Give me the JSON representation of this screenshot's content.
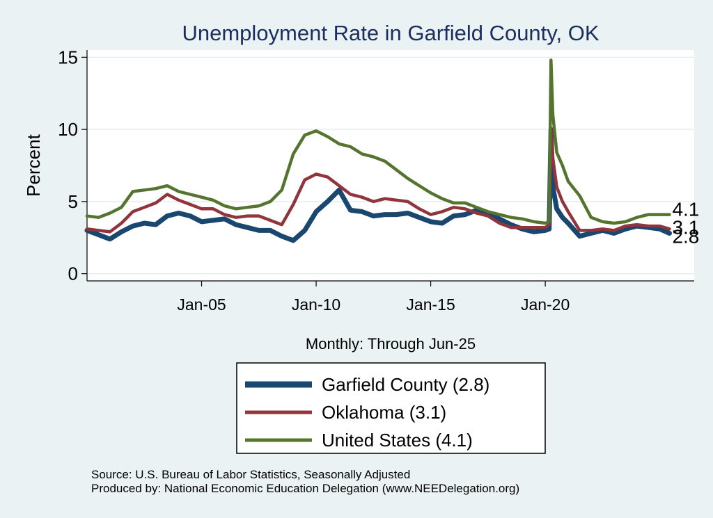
{
  "chart_data": {
    "type": "line",
    "title": "Unemployment Rate in Garfield  County, OK",
    "xlabel": "Monthly: Through Jun-25",
    "ylabel": "Percent",
    "ylim": [
      -0.5,
      15.5
    ],
    "xlim": [
      2000.0,
      2026.5
    ],
    "yticks": [
      {
        "value": 0,
        "label": "0"
      },
      {
        "value": 5,
        "label": "5"
      },
      {
        "value": 10,
        "label": "10"
      },
      {
        "value": 15,
        "label": "15"
      }
    ],
    "xticks": [
      {
        "value": 2005,
        "label": "Jan-05"
      },
      {
        "value": 2010,
        "label": "Jan-10"
      },
      {
        "value": 2015,
        "label": "Jan-15"
      },
      {
        "value": 2020,
        "label": "Jan-20"
      }
    ],
    "grid": true,
    "legend_position": "bottom",
    "series": [
      {
        "name": "Garfield  County",
        "legend_label": "Garfield  County (2.8)",
        "end_label": "2.8",
        "color": "#1a476f",
        "x": [
          2000.0,
          2000.5,
          2001.0,
          2001.5,
          2002.0,
          2002.5,
          2003.0,
          2003.5,
          2004.0,
          2004.5,
          2005.0,
          2005.5,
          2006.0,
          2006.5,
          2007.0,
          2007.5,
          2008.0,
          2008.5,
          2009.0,
          2009.5,
          2010.0,
          2010.5,
          2011.0,
          2011.5,
          2012.0,
          2012.5,
          2013.0,
          2013.5,
          2014.0,
          2014.5,
          2015.0,
          2015.5,
          2016.0,
          2016.5,
          2017.0,
          2017.5,
          2018.0,
          2018.5,
          2019.0,
          2019.5,
          2020.0,
          2020.17,
          2020.25,
          2020.33,
          2020.5,
          2020.75,
          2021.0,
          2021.5,
          2022.0,
          2022.5,
          2023.0,
          2023.5,
          2024.0,
          2024.5,
          2025.0,
          2025.42
        ],
        "values": [
          3.0,
          2.7,
          2.4,
          2.9,
          3.3,
          3.5,
          3.4,
          4.0,
          4.2,
          4.0,
          3.6,
          3.7,
          3.8,
          3.4,
          3.2,
          3.0,
          3.0,
          2.6,
          2.3,
          3.0,
          4.3,
          5.0,
          5.8,
          4.4,
          4.3,
          4.0,
          4.1,
          4.1,
          4.2,
          3.9,
          3.6,
          3.5,
          4.0,
          4.1,
          4.4,
          4.2,
          3.8,
          3.4,
          3.1,
          2.9,
          3.0,
          3.1,
          10.0,
          6.0,
          4.5,
          3.9,
          3.5,
          2.6,
          2.8,
          3.0,
          2.8,
          3.1,
          3.3,
          3.2,
          3.1,
          2.8
        ]
      },
      {
        "name": "Oklahoma",
        "legend_label": "Oklahoma (3.1)",
        "end_label": "3.1",
        "color": "#90353b",
        "x": [
          2000.0,
          2000.5,
          2001.0,
          2001.5,
          2002.0,
          2002.5,
          2003.0,
          2003.5,
          2004.0,
          2004.5,
          2005.0,
          2005.5,
          2006.0,
          2006.5,
          2007.0,
          2007.5,
          2008.0,
          2008.5,
          2009.0,
          2009.5,
          2010.0,
          2010.5,
          2011.0,
          2011.5,
          2012.0,
          2012.5,
          2013.0,
          2013.5,
          2014.0,
          2014.5,
          2015.0,
          2015.5,
          2016.0,
          2016.5,
          2017.0,
          2017.5,
          2018.0,
          2018.5,
          2019.0,
          2019.5,
          2020.0,
          2020.17,
          2020.25,
          2020.33,
          2020.5,
          2020.75,
          2021.0,
          2021.5,
          2022.0,
          2022.5,
          2023.0,
          2023.5,
          2024.0,
          2024.5,
          2025.0,
          2025.42
        ],
        "values": [
          3.1,
          3.0,
          2.9,
          3.5,
          4.3,
          4.6,
          4.9,
          5.5,
          5.1,
          4.8,
          4.5,
          4.5,
          4.1,
          3.9,
          4.0,
          4.0,
          3.7,
          3.4,
          4.8,
          6.5,
          6.9,
          6.7,
          6.1,
          5.5,
          5.3,
          5.0,
          5.2,
          5.1,
          5.0,
          4.5,
          4.1,
          4.3,
          4.6,
          4.5,
          4.2,
          4.0,
          3.5,
          3.2,
          3.2,
          3.2,
          3.2,
          3.4,
          10.0,
          8.0,
          6.0,
          5.0,
          4.3,
          3.0,
          3.0,
          3.1,
          3.0,
          3.3,
          3.4,
          3.3,
          3.3,
          3.1
        ]
      },
      {
        "name": "United States",
        "legend_label": "United States (4.1)",
        "end_label": "4.1",
        "color": "#55752f",
        "x": [
          2000.0,
          2000.5,
          2001.0,
          2001.5,
          2002.0,
          2002.5,
          2003.0,
          2003.5,
          2004.0,
          2004.5,
          2005.0,
          2005.5,
          2006.0,
          2006.5,
          2007.0,
          2007.5,
          2008.0,
          2008.5,
          2009.0,
          2009.5,
          2010.0,
          2010.5,
          2011.0,
          2011.5,
          2012.0,
          2012.5,
          2013.0,
          2013.5,
          2014.0,
          2014.5,
          2015.0,
          2015.5,
          2016.0,
          2016.5,
          2017.0,
          2017.5,
          2018.0,
          2018.5,
          2019.0,
          2019.5,
          2020.0,
          2020.17,
          2020.25,
          2020.33,
          2020.5,
          2020.75,
          2021.0,
          2021.5,
          2022.0,
          2022.5,
          2023.0,
          2023.5,
          2024.0,
          2024.5,
          2025.0,
          2025.42
        ],
        "values": [
          4.0,
          3.9,
          4.2,
          4.6,
          5.7,
          5.8,
          5.9,
          6.1,
          5.7,
          5.5,
          5.3,
          5.1,
          4.7,
          4.5,
          4.6,
          4.7,
          5.0,
          5.8,
          8.3,
          9.6,
          9.9,
          9.5,
          9.0,
          8.8,
          8.3,
          8.1,
          7.8,
          7.2,
          6.6,
          6.1,
          5.6,
          5.2,
          4.9,
          4.9,
          4.6,
          4.3,
          4.1,
          3.9,
          3.8,
          3.6,
          3.5,
          3.6,
          14.8,
          11.0,
          8.4,
          7.5,
          6.4,
          5.4,
          3.9,
          3.6,
          3.5,
          3.6,
          3.9,
          4.1,
          4.1,
          4.1
        ]
      }
    ]
  },
  "source": {
    "line1": "Source: U.S. Bureau of Labor Statistics, Seasonally Adjusted",
    "line2": "Produced by: National Economic Education Delegation (www.NEEDelegation.org)"
  }
}
